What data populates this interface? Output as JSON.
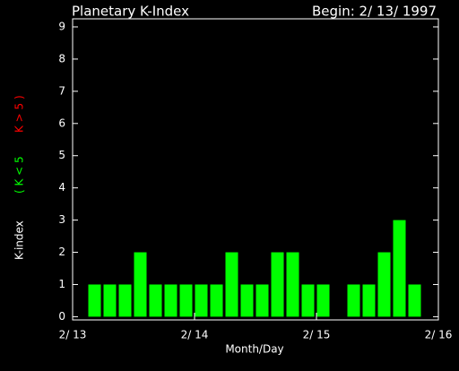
{
  "chart_data": {
    "type": "bar",
    "title": "Planetary K-Index",
    "subtitle": "Begin: 2/ 13/ 1997",
    "xlabel": "Month/Day",
    "ylabel": "K-index",
    "ylabel_low": "( K < 5",
    "ylabel_high": "K > 5 )",
    "ylabel_low_color": "#00ff00",
    "ylabel_high_color": "#ff0000",
    "x": [
      0,
      1,
      2,
      3,
      4,
      5,
      6,
      7,
      8,
      9,
      10,
      11,
      12,
      13,
      14,
      15,
      16,
      17,
      18,
      19,
      20,
      21,
      22,
      23
    ],
    "values": [
      null,
      1,
      1,
      1,
      2,
      1,
      1,
      1,
      1,
      1,
      2,
      1,
      1,
      2,
      2,
      1,
      1,
      null,
      1,
      1,
      2,
      3,
      1,
      null
    ],
    "color": "#00ff00",
    "xlim": [
      0,
      24
    ],
    "xticks": [
      {
        "value": 0,
        "label": "2/ 13"
      },
      {
        "value": 8,
        "label": "2/ 14"
      },
      {
        "value": 16,
        "label": "2/ 15"
      },
      {
        "value": 24,
        "label": "2/ 16"
      }
    ],
    "ylim": [
      -0.1,
      9.25
    ],
    "yticks": [
      0,
      1,
      2,
      3,
      4,
      5,
      6,
      7,
      8,
      9
    ]
  }
}
